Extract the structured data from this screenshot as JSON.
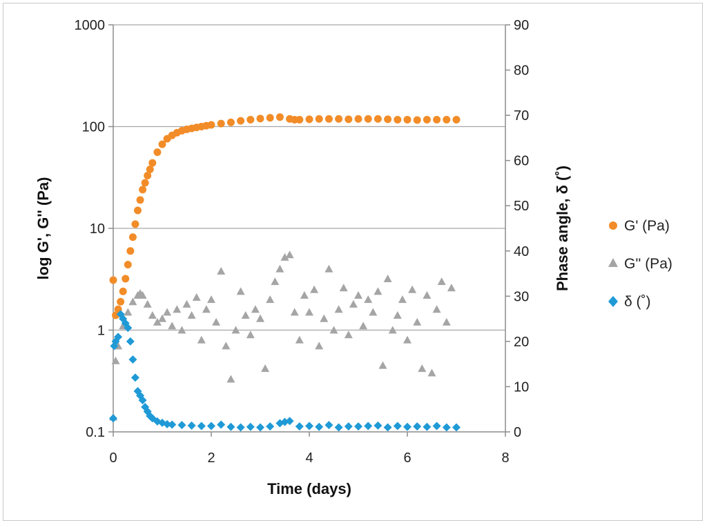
{
  "chart_data": {
    "type": "scatter",
    "title": "",
    "xlabel": "Time (days)",
    "ylabel_left": "log G', G'' (Pa)",
    "ylabel_right": "Phase angle, δ (˚)",
    "xlim": [
      0,
      8
    ],
    "xticks": [
      0,
      2,
      4,
      6,
      8
    ],
    "ylim_left": [
      0.1,
      1000
    ],
    "yscale_left": "log",
    "yticks_left": [
      0.1,
      1,
      10,
      100,
      1000
    ],
    "ylim_right": [
      0,
      90
    ],
    "yticks_right": [
      0,
      10,
      20,
      30,
      40,
      50,
      60,
      70,
      80,
      90
    ],
    "grid": "horizontal major lines",
    "legend_position": "right",
    "colors": {
      "gp": "#f28c28",
      "gpp": "#a5a5a5",
      "delta": "#1f9ad6",
      "grid": "#a6a6a6",
      "axis": "#8c8c8c"
    },
    "series": [
      {
        "name": "G' (Pa)",
        "axis": "left",
        "marker": "circle",
        "color": "#f28c28",
        "x": [
          0,
          0.05,
          0.1,
          0.15,
          0.2,
          0.25,
          0.3,
          0.35,
          0.4,
          0.45,
          0.5,
          0.55,
          0.6,
          0.65,
          0.7,
          0.75,
          0.8,
          0.9,
          1.0,
          1.1,
          1.2,
          1.3,
          1.4,
          1.5,
          1.6,
          1.7,
          1.8,
          1.9,
          2.0,
          2.2,
          2.4,
          2.6,
          2.8,
          3.0,
          3.2,
          3.4,
          3.6,
          3.7,
          3.8,
          4.0,
          4.2,
          4.4,
          4.6,
          4.8,
          5.0,
          5.2,
          5.4,
          5.6,
          5.8,
          6.0,
          6.2,
          6.4,
          6.6,
          6.8,
          7.0
        ],
        "y": [
          3.1,
          1.4,
          1.6,
          1.9,
          2.4,
          3.2,
          4.4,
          6.0,
          8.2,
          11,
          15,
          19,
          24,
          28,
          33,
          38,
          44,
          56,
          67,
          76,
          82,
          87,
          91,
          94,
          96,
          98,
          100,
          102,
          104,
          107,
          110,
          114,
          117,
          120,
          122,
          124,
          119,
          117,
          117,
          118,
          119,
          119,
          119,
          118,
          119,
          119,
          119,
          118,
          117,
          117,
          116,
          117,
          117,
          117,
          117
        ]
      },
      {
        "name": "G'' (Pa)",
        "axis": "left",
        "marker": "triangle",
        "color": "#a5a5a5",
        "x": [
          0,
          0.05,
          0.1,
          0.2,
          0.3,
          0.4,
          0.5,
          0.55,
          0.6,
          0.7,
          0.8,
          0.9,
          1.0,
          1.1,
          1.2,
          1.3,
          1.4,
          1.5,
          1.6,
          1.7,
          1.8,
          1.9,
          2.0,
          2.1,
          2.2,
          2.3,
          2.4,
          2.5,
          2.6,
          2.7,
          2.8,
          2.9,
          3.0,
          3.1,
          3.2,
          3.3,
          3.4,
          3.5,
          3.6,
          3.7,
          3.8,
          3.9,
          4.0,
          4.1,
          4.2,
          4.3,
          4.4,
          4.5,
          4.6,
          4.7,
          4.8,
          4.9,
          5.0,
          5.1,
          5.2,
          5.3,
          5.4,
          5.5,
          5.6,
          5.7,
          5.8,
          5.9,
          6.0,
          6.1,
          6.2,
          6.3,
          6.4,
          6.5,
          6.6,
          6.7,
          6.8,
          6.9
        ],
        "y": [
          0.14,
          0.5,
          0.7,
          1.1,
          1.5,
          1.9,
          2.2,
          2.3,
          2.2,
          1.8,
          1.4,
          1.2,
          1.3,
          1.5,
          1.1,
          1.6,
          1.0,
          1.8,
          1.4,
          2.1,
          0.8,
          1.6,
          2.0,
          1.2,
          3.8,
          0.7,
          0.33,
          1.0,
          2.4,
          1.4,
          0.9,
          1.6,
          1.3,
          0.42,
          2.0,
          3.0,
          4.0,
          5.2,
          5.5,
          1.5,
          0.8,
          2.2,
          1.5,
          2.5,
          0.7,
          1.3,
          4.0,
          1.0,
          1.6,
          2.6,
          0.9,
          1.8,
          2.2,
          1.1,
          2.0,
          1.5,
          2.4,
          0.45,
          3.2,
          1.0,
          1.4,
          2.0,
          0.8,
          2.5,
          1.2,
          0.42,
          2.2,
          0.38,
          1.6,
          3.0,
          1.2,
          2.6
        ]
      },
      {
        "name": "δ (˚)",
        "axis": "right",
        "marker": "diamond",
        "color": "#1f9ad6",
        "x": [
          0,
          0.02,
          0.05,
          0.1,
          0.15,
          0.2,
          0.25,
          0.3,
          0.35,
          0.4,
          0.45,
          0.5,
          0.55,
          0.6,
          0.65,
          0.7,
          0.75,
          0.8,
          0.9,
          1.0,
          1.1,
          1.2,
          1.4,
          1.6,
          1.8,
          2.0,
          2.2,
          2.4,
          2.6,
          2.8,
          3.0,
          3.2,
          3.4,
          3.5,
          3.6,
          3.8,
          4.0,
          4.2,
          4.4,
          4.6,
          4.8,
          5.0,
          5.2,
          5.4,
          5.6,
          5.8,
          6.0,
          6.2,
          6.4,
          6.6,
          6.8,
          7.0
        ],
        "y": [
          3,
          19,
          20,
          21,
          26,
          25,
          24,
          23,
          20,
          16,
          12,
          9,
          8,
          7,
          5.5,
          4.5,
          3.5,
          3,
          2.3,
          2,
          1.7,
          1.6,
          1.5,
          1.4,
          1.3,
          1.3,
          1.6,
          1.1,
          1.0,
          1.1,
          1.0,
          1.2,
          1.9,
          2.2,
          2.4,
          1.2,
          1.3,
          1.1,
          1.5,
          1.0,
          1.2,
          1.2,
          1.3,
          1.4,
          1.0,
          1.3,
          1.1,
          1.2,
          1.1,
          1.3,
          1.0,
          1.0
        ]
      }
    ]
  }
}
